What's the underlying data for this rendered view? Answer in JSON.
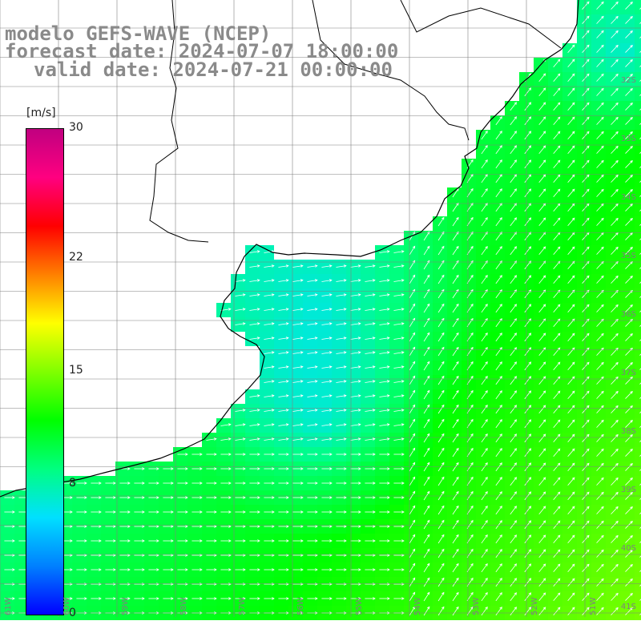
{
  "title": {
    "line1": "modelo GEFS-WAVE (NCEP)",
    "line2": "forecast date: 2024-07-07 18:00:00",
    "line3": "valid date: 2024-07-21 00:00:00"
  },
  "colorbar": {
    "unit": "[m/s]",
    "min": 0,
    "max": 30,
    "ticks": [
      {
        "value": 30,
        "label": "30"
      },
      {
        "value": 22,
        "label": "22"
      },
      {
        "value": 15,
        "label": "15"
      },
      {
        "value": 8,
        "label": "8"
      },
      {
        "value": 0,
        "label": "0"
      }
    ],
    "colors": [
      "#0000ff",
      "#0080ff",
      "#00e0ff",
      "#00ff80",
      "#00ff00",
      "#80ff00",
      "#ffff00",
      "#ff8000",
      "#ff0000",
      "#ff0080",
      "#c00080"
    ]
  },
  "lat_labels": [
    "32S",
    "33S",
    "34S",
    "35S",
    "36S",
    "37S",
    "38S",
    "39S",
    "40S",
    "41S"
  ],
  "lon_labels": [
    "61W",
    "60W",
    "59W",
    "58W",
    "57W",
    "56W",
    "55W",
    "54W",
    "53W",
    "52W",
    "51W"
  ],
  "colors": {
    "grid": "#808080",
    "coast": "#000000",
    "arrows": "#ffffff",
    "title": "#8a8a8a"
  }
}
